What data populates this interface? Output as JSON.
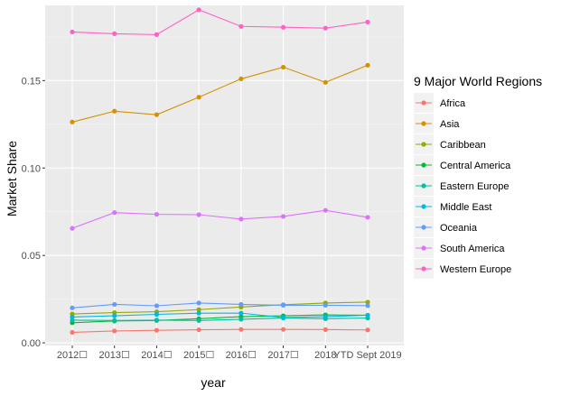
{
  "chart_data": {
    "type": "line",
    "title": "",
    "xlabel": "year",
    "ylabel": "Market Share",
    "categories": [
      "2012☐",
      "2013☐",
      "2014☐",
      "2015☐",
      "2016☐",
      "2017☐",
      "2018",
      "YTD Sept 2019"
    ],
    "yticks": [
      0.0,
      0.05,
      0.1,
      0.15
    ],
    "ytick_labels": [
      "0.00",
      "0.05",
      "0.10",
      "0.15"
    ],
    "ylim": [
      -0.0015,
      0.193
    ],
    "grid": true,
    "legend_position": "right",
    "legend_title": "9 Major World Regions",
    "series": [
      {
        "name": "Africa",
        "color": "#F8766D",
        "values": [
          0.006,
          0.0068,
          0.0072,
          0.0075,
          0.0077,
          0.0077,
          0.0076,
          0.0074
        ]
      },
      {
        "name": "Asia",
        "color": "#D39200",
        "values": [
          0.1263,
          0.1325,
          0.1305,
          0.1405,
          0.151,
          0.1577,
          0.149,
          0.1588
        ]
      },
      {
        "name": "Caribbean",
        "color": "#93AA00",
        "values": [
          0.0165,
          0.0173,
          0.0178,
          0.019,
          0.0205,
          0.0218,
          0.0228,
          0.0233
        ]
      },
      {
        "name": "Central America",
        "color": "#00BA38",
        "values": [
          0.0115,
          0.0125,
          0.0128,
          0.0138,
          0.015,
          0.0155,
          0.016,
          0.0158
        ]
      },
      {
        "name": "Eastern Europe",
        "color": "#00C19F",
        "values": [
          0.013,
          0.0128,
          0.013,
          0.0128,
          0.0135,
          0.0142,
          0.0138,
          0.0142
        ]
      },
      {
        "name": "Middle East",
        "color": "#00B9E3",
        "values": [
          0.0148,
          0.0155,
          0.0163,
          0.017,
          0.017,
          0.0145,
          0.015,
          0.0158
        ]
      },
      {
        "name": "Oceania",
        "color": "#619CFF",
        "values": [
          0.02,
          0.022,
          0.0212,
          0.0228,
          0.022,
          0.0215,
          0.0215,
          0.0213
        ]
      },
      {
        "name": "South America",
        "color": "#DB72FB",
        "values": [
          0.0655,
          0.0745,
          0.0735,
          0.0733,
          0.0708,
          0.0723,
          0.0758,
          0.0718
        ]
      },
      {
        "name": "Western Europe",
        "color": "#FF61C3",
        "values": [
          0.1778,
          0.1768,
          0.1763,
          0.1905,
          0.181,
          0.1805,
          0.18,
          0.1835
        ]
      }
    ]
  }
}
